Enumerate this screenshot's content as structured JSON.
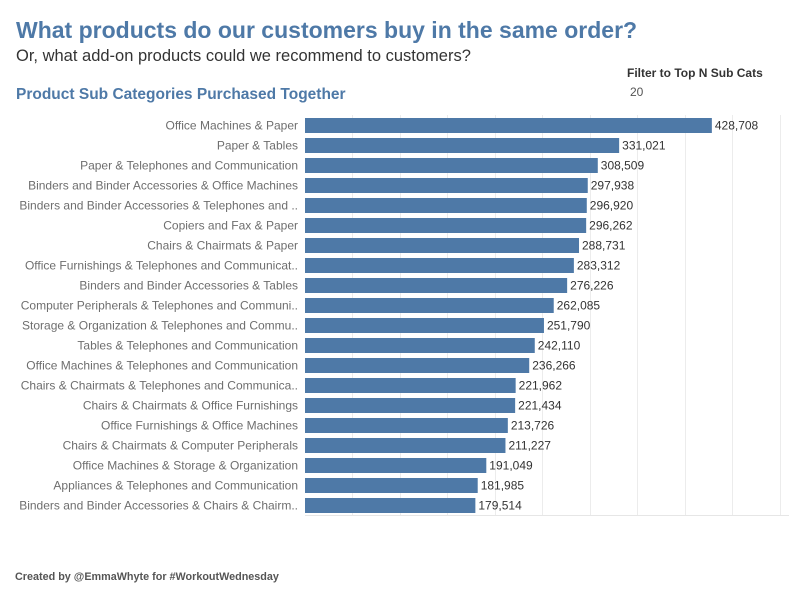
{
  "header": {
    "title": "What products do our customers buy in the same order?",
    "subtitle": "Or, what add-on products could we recommend to customers?",
    "chart_heading": "Product Sub Categories Purchased Together"
  },
  "filter": {
    "label": "Filter to Top N Sub Cats",
    "value": "20"
  },
  "footer": {
    "credit": "Created by @EmmaWhyte for #WorkoutWednesday"
  },
  "colors": {
    "title": "#4e79a7",
    "bar": "#4e79a7",
    "gridline": "#ececec",
    "category_label": "#6e6e6e",
    "value_label": "#333333"
  },
  "chart_data": {
    "type": "bar",
    "orientation": "horizontal",
    "title": "Product Sub Categories Purchased Together",
    "xlabel": "",
    "ylabel": "",
    "xlim": [
      0,
      510000
    ],
    "grid": true,
    "gridline_step": 50000,
    "legend": "none",
    "categories": [
      "Office Machines & Paper",
      "Paper & Tables",
      "Paper & Telephones and Communication",
      "Binders and Binder Accessories & Office Machines",
      "Binders and Binder Accessories & Telephones and ..",
      "Copiers and Fax & Paper",
      "Chairs & Chairmats & Paper",
      "Office Furnishings & Telephones and Communicat..",
      "Binders and Binder Accessories & Tables",
      "Computer Peripherals & Telephones and Communi..",
      "Storage & Organization & Telephones and Commu..",
      "Tables & Telephones and Communication",
      "Office Machines & Telephones and Communication",
      "Chairs & Chairmats & Telephones and Communica..",
      "Chairs & Chairmats & Office Furnishings",
      "Office Furnishings & Office Machines",
      "Chairs & Chairmats & Computer Peripherals",
      "Office Machines & Storage & Organization",
      "Appliances & Telephones and Communication",
      "Binders and Binder Accessories & Chairs & Chairm.."
    ],
    "values": [
      428708,
      331021,
      308509,
      297938,
      296920,
      296262,
      288731,
      283312,
      276226,
      262085,
      251790,
      242110,
      236266,
      221962,
      221434,
      213726,
      211227,
      191049,
      181985,
      179514
    ],
    "value_labels": [
      "428,708",
      "331,021",
      "308,509",
      "297,938",
      "296,920",
      "296,262",
      "288,731",
      "283,312",
      "276,226",
      "262,085",
      "251,790",
      "242,110",
      "236,266",
      "221,962",
      "221,434",
      "213,726",
      "211,227",
      "191,049",
      "181,985",
      "179,514"
    ]
  }
}
